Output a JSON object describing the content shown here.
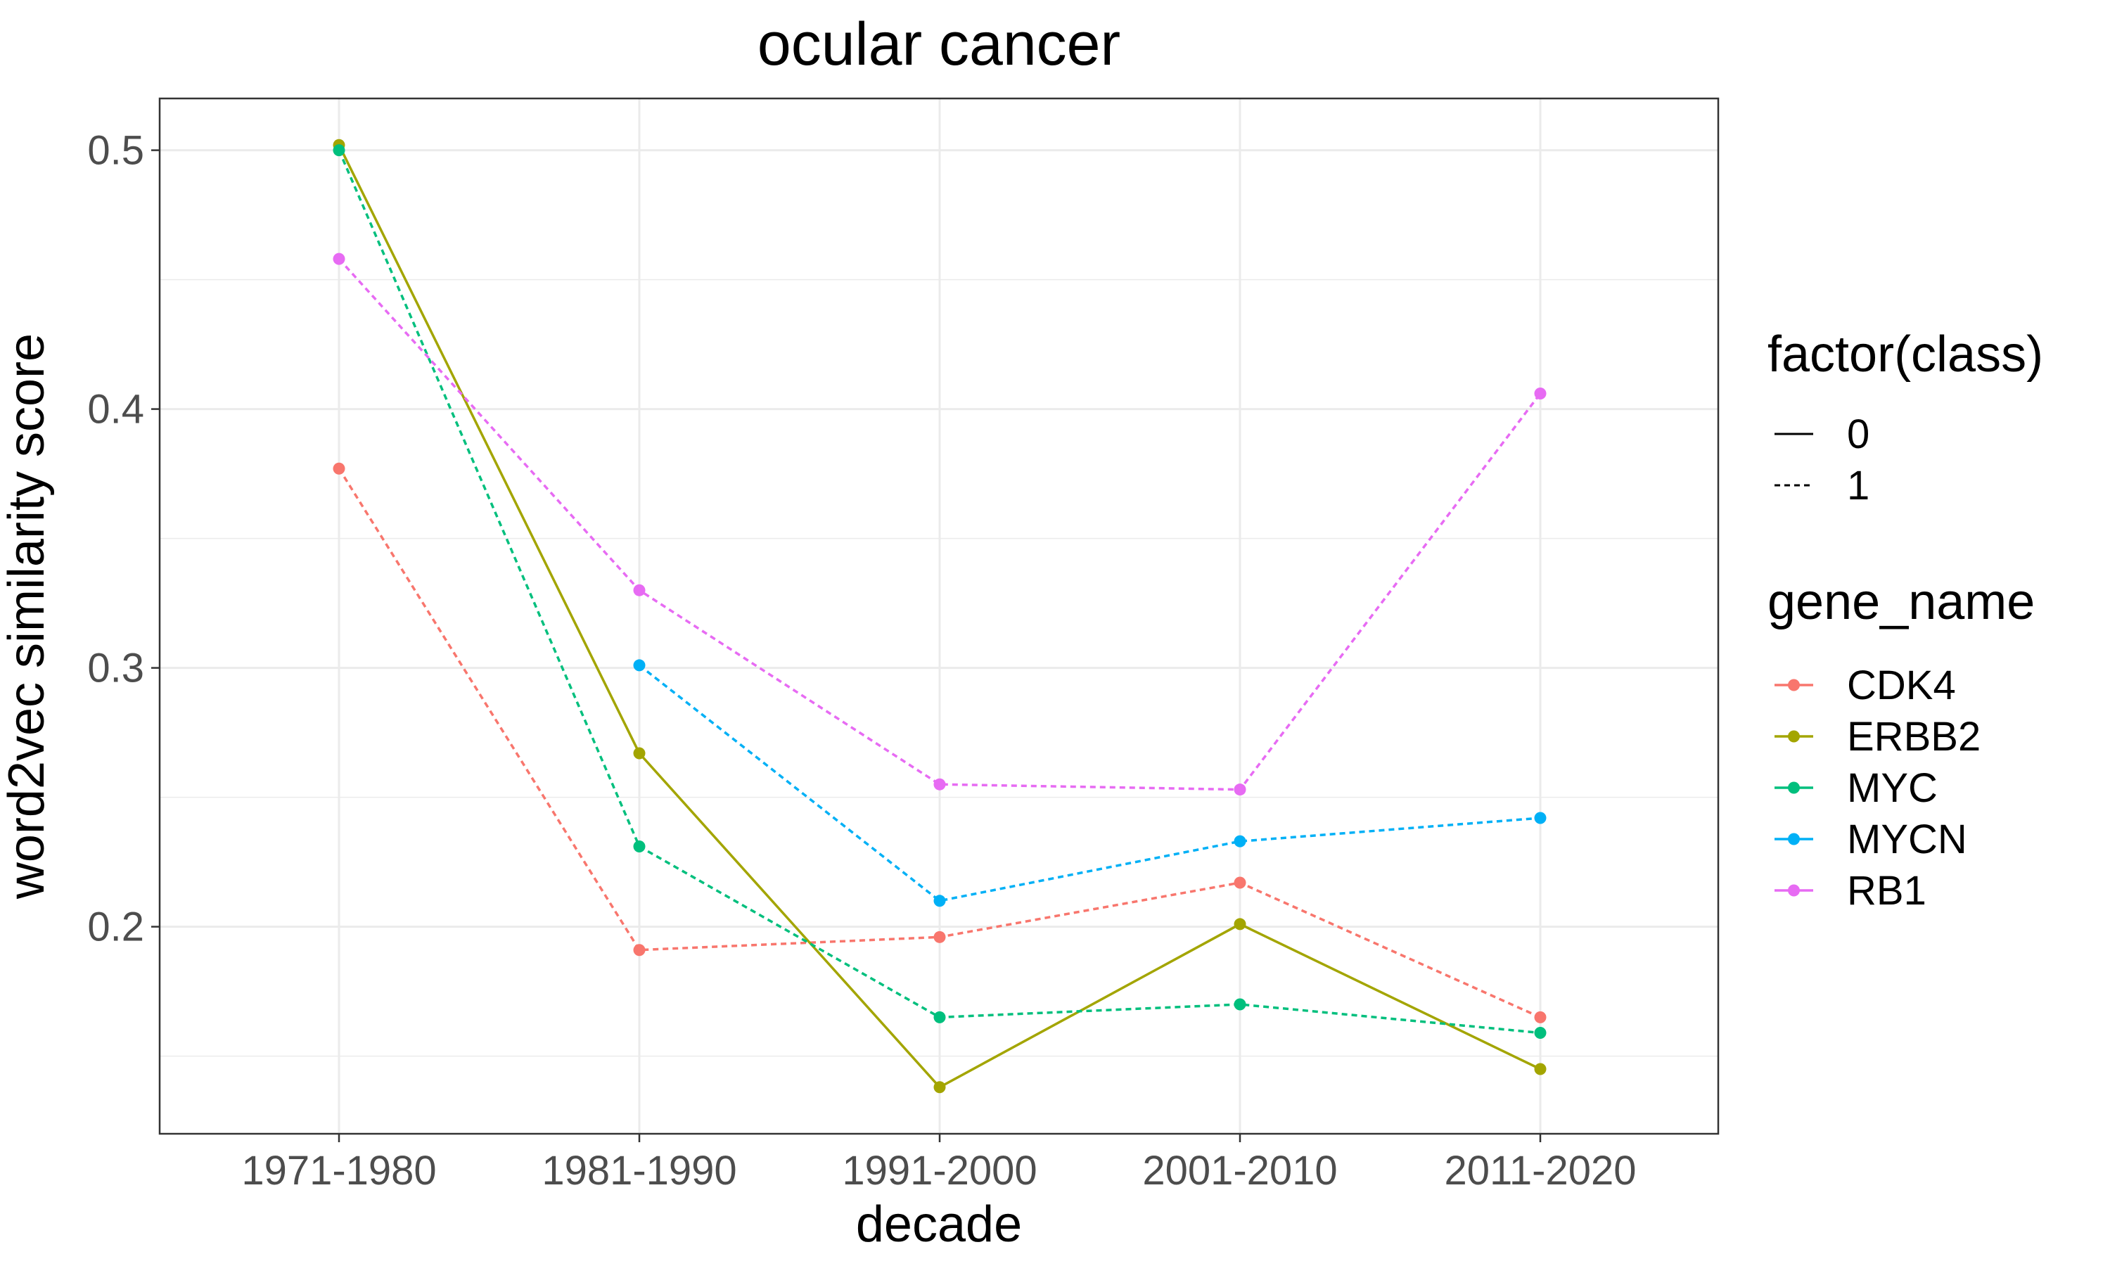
{
  "chart_data": {
    "type": "line",
    "title": "ocular cancer",
    "xlabel": "decade",
    "ylabel": "word2vec similarity score",
    "categories": [
      "1971-1980",
      "1981-1990",
      "1991-2000",
      "2001-2010",
      "2011-2020"
    ],
    "ylim": [
      0.12,
      0.52
    ],
    "yticks": [
      0.2,
      0.3,
      0.4,
      0.5
    ],
    "yticks_labels": [
      "0.2",
      "0.3",
      "0.4",
      "0.5"
    ],
    "grid": true,
    "legend_position": "right",
    "linetype_legend": {
      "title": "factor(class)",
      "entries": [
        {
          "label": "0",
          "linetype": "solid"
        },
        {
          "label": "1",
          "linetype": "dashed"
        }
      ]
    },
    "color_legend_title": "gene_name",
    "series": [
      {
        "name": "CDK4",
        "color": "#F8766D",
        "linetype": "dashed",
        "values": [
          0.377,
          0.191,
          0.196,
          0.217,
          0.165
        ]
      },
      {
        "name": "ERBB2",
        "color": "#A3A500",
        "linetype": "solid",
        "values": [
          0.502,
          0.267,
          0.138,
          0.201,
          0.145
        ]
      },
      {
        "name": "MYC",
        "color": "#00BF7D",
        "linetype": "dashed",
        "values": [
          0.5,
          0.231,
          0.165,
          0.17,
          0.159
        ]
      },
      {
        "name": "MYCN",
        "color": "#00B0F6",
        "linetype": "dashed",
        "values": [
          null,
          0.301,
          0.21,
          0.233,
          0.242
        ]
      },
      {
        "name": "RB1",
        "color": "#E76BF3",
        "linetype": "dashed",
        "values": [
          0.458,
          0.33,
          0.255,
          0.253,
          0.406
        ]
      }
    ]
  }
}
